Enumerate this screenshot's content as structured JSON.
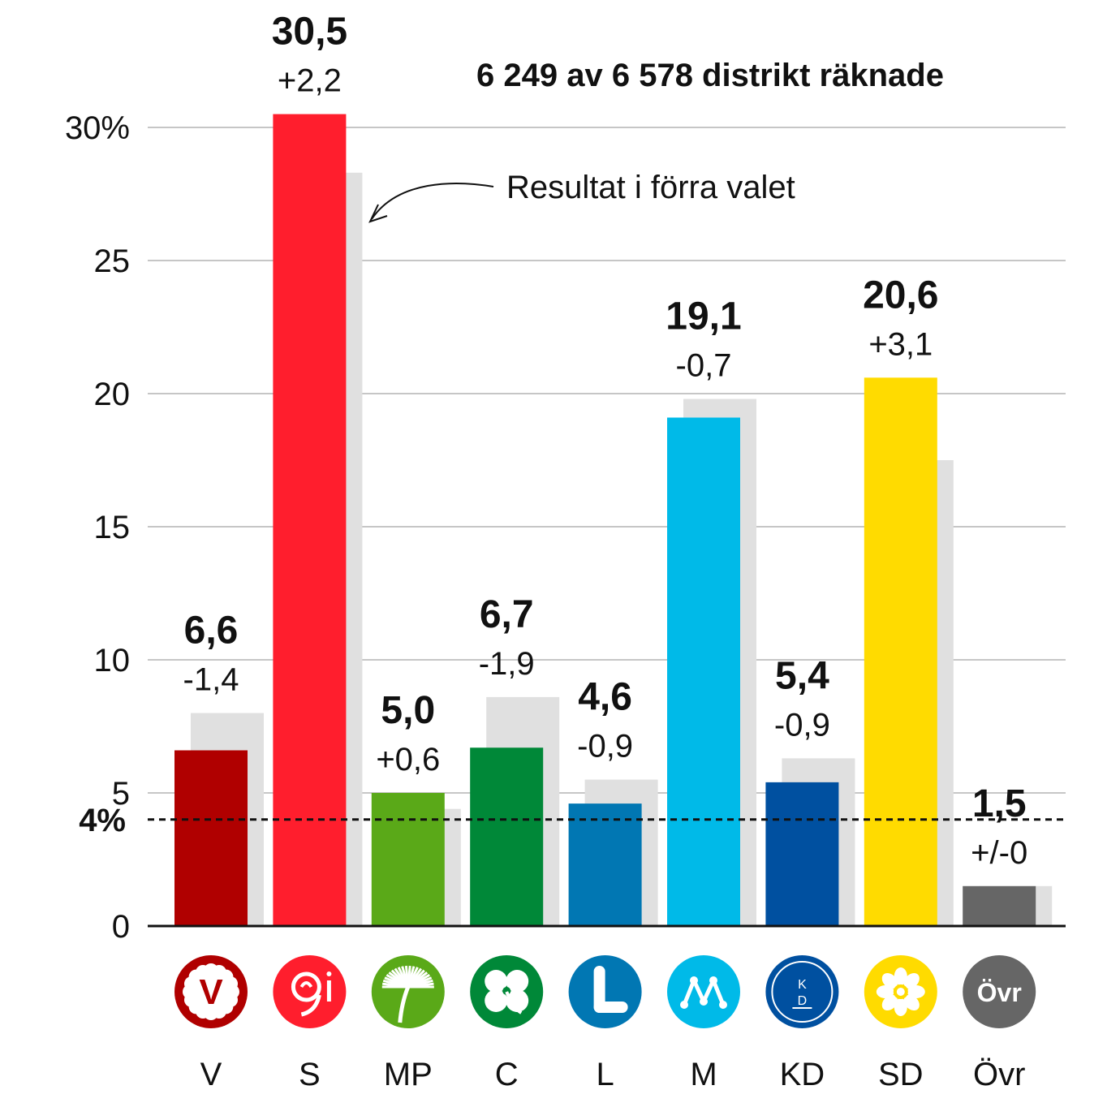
{
  "chart_data": {
    "type": "bar",
    "subtitle": "6 249 av 6 578 distrikt räknade",
    "annotation": "Resultat i förra valet",
    "threshold": {
      "value": 4,
      "label": "4%"
    },
    "ylim": [
      0,
      30
    ],
    "yticks": [
      {
        "value": 0,
        "label": "0"
      },
      {
        "value": 5,
        "label": "5"
      },
      {
        "value": 10,
        "label": "10"
      },
      {
        "value": 15,
        "label": "15"
      },
      {
        "value": 20,
        "label": "20"
      },
      {
        "value": 25,
        "label": "25"
      },
      {
        "value": 30,
        "label": "30%"
      }
    ],
    "categories": [
      "V",
      "S",
      "MP",
      "C",
      "L",
      "M",
      "KD",
      "SD",
      "Övr"
    ],
    "series": [
      {
        "values": [
          6.6,
          30.5,
          5.0,
          6.7,
          4.6,
          19.1,
          5.4,
          20.6,
          1.5
        ]
      },
      {
        "values": [
          8.0,
          28.3,
          4.4,
          8.6,
          5.5,
          19.8,
          6.3,
          17.5,
          1.5
        ]
      }
    ],
    "value_labels": [
      "6,6",
      "30,5",
      "5,0",
      "6,7",
      "4,6",
      "19,1",
      "5,4",
      "20,6",
      "1,5"
    ],
    "change_labels": [
      "-1,4",
      "+2,2",
      "+0,6",
      "-1,9",
      "-0,9",
      "-0,7",
      "-0,9",
      "+3,1",
      "+/-0"
    ],
    "colors": [
      "#b00000",
      "#ff1e2d",
      "#5aa918",
      "#008838",
      "#0177b3",
      "#00bae8",
      "#0050a0",
      "#ffdb00",
      "#666666"
    ],
    "previous_color": "#e0e0e0",
    "logos": [
      {
        "icon": "v-flower-icon",
        "text": "V"
      },
      {
        "icon": "rose-icon",
        "text": ""
      },
      {
        "icon": "dandelion-icon",
        "text": ""
      },
      {
        "icon": "clover-icon",
        "text": ""
      },
      {
        "icon": "l-letter-icon",
        "text": ""
      },
      {
        "icon": "m-letter-icon",
        "text": ""
      },
      {
        "icon": "kd-icon",
        "text": "K D"
      },
      {
        "icon": "anemone-icon",
        "text": ""
      },
      {
        "icon": "ovr-icon",
        "text": "Övr"
      }
    ]
  }
}
